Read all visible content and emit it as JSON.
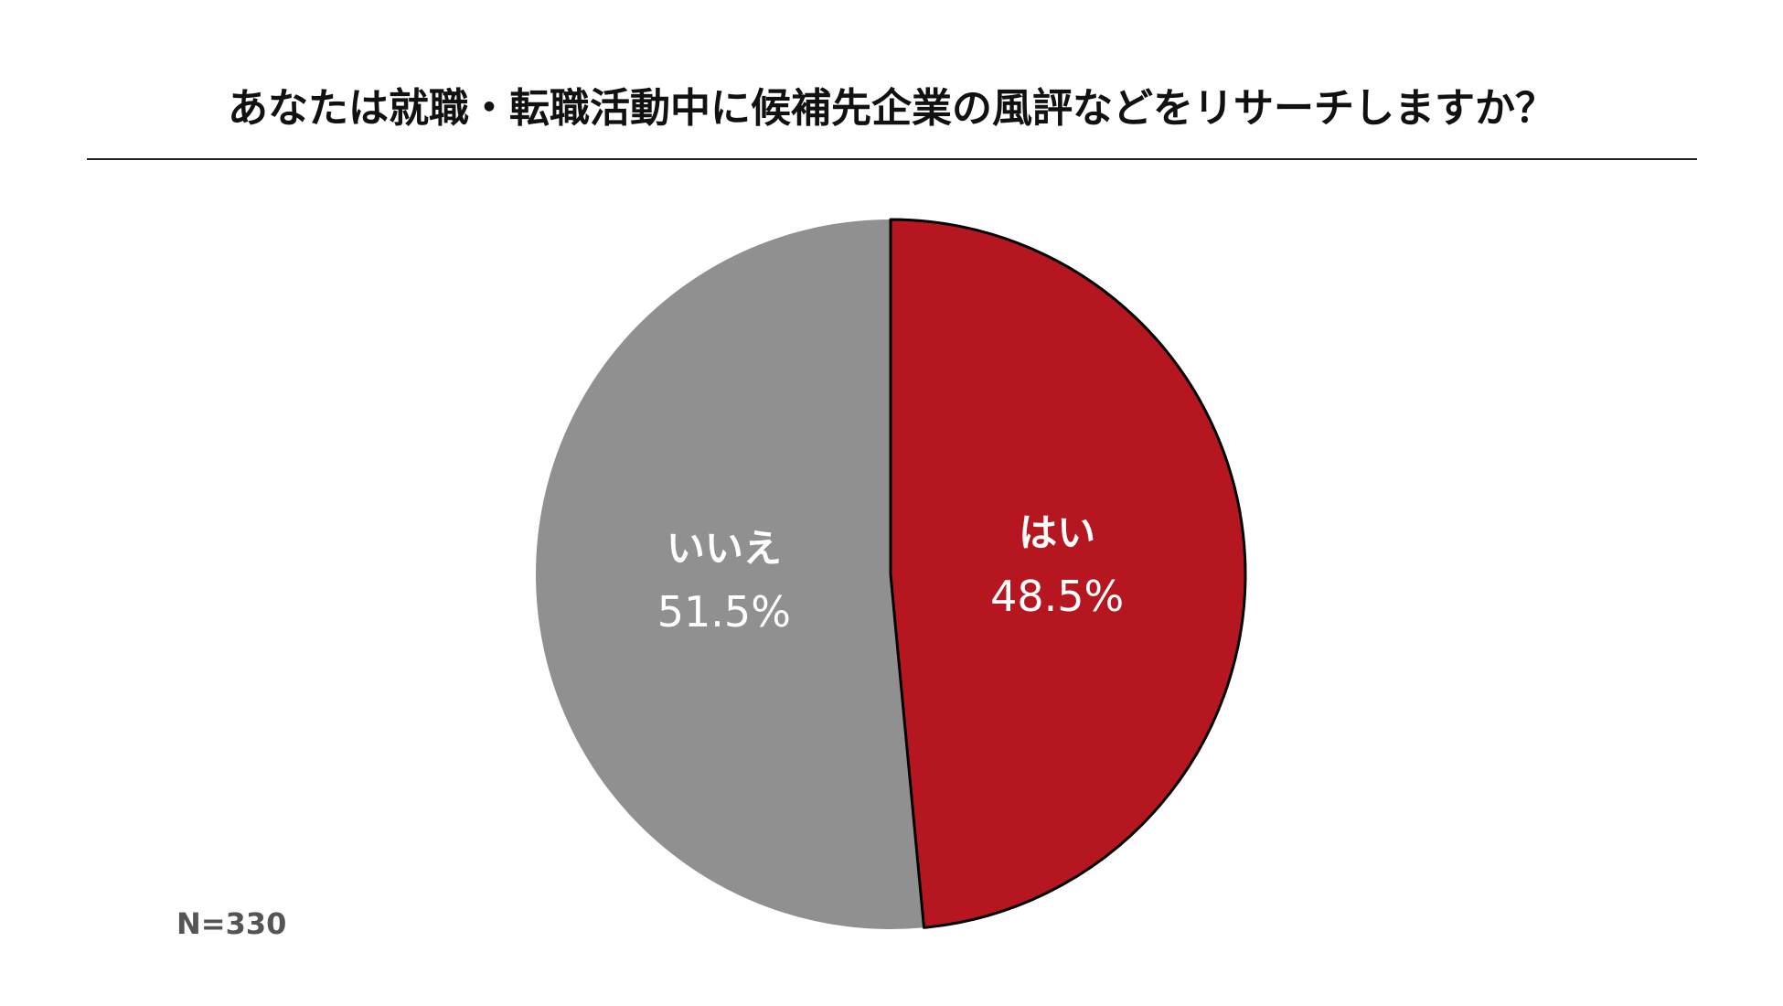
{
  "chart_data": {
    "type": "pie",
    "title": "あなたは就職・転職活動中に候補先企業の風評などをリサーチしますか？",
    "categories": [
      "はい",
      "いいえ"
    ],
    "values": [
      48.5,
      51.5
    ],
    "value_labels": [
      "48.5%",
      "51.5%"
    ],
    "colors": [
      "#b5161f",
      "#909090"
    ],
    "note": "N=330"
  }
}
